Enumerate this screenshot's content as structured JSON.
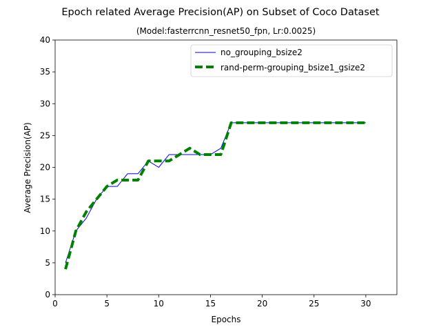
{
  "chart_data": {
    "type": "line",
    "title": "Epoch related Average Precision(AP) on Subset of Coco Dataset",
    "subtitle": "(Model:fasterrcnn_resnet50_fpn, Lr:0.0025)",
    "xlabel": "Epochs",
    "ylabel": "Average Precision(AP)",
    "xlim": [
      0,
      33
    ],
    "ylim": [
      0,
      40
    ],
    "xticks": [
      0,
      5,
      10,
      15,
      20,
      25,
      30
    ],
    "yticks": [
      0,
      5,
      10,
      15,
      20,
      25,
      30,
      35,
      40
    ],
    "grid": false,
    "legend_position": "upper-right",
    "series": [
      {
        "name": "no_grouping_bsize2",
        "color": "#0000ff",
        "style": "solid",
        "x": [
          1,
          2,
          3,
          4,
          5,
          6,
          7,
          8,
          9,
          10,
          11,
          12,
          13,
          14,
          15,
          16,
          17,
          18,
          19,
          20,
          21,
          22,
          23,
          24,
          25,
          26,
          27,
          28,
          29,
          30
        ],
        "y": [
          5,
          10,
          12,
          15,
          17,
          17,
          19,
          19,
          21,
          20,
          22,
          22,
          22,
          22,
          22,
          23,
          27,
          27,
          27,
          27,
          27,
          27,
          27,
          27,
          27,
          27,
          27,
          27,
          27,
          27
        ]
      },
      {
        "name": "rand-perm-grouping_bsize1_gsize2",
        "color": "#008000",
        "style": "dashed",
        "x": [
          1,
          2,
          3,
          4,
          5,
          6,
          7,
          8,
          9,
          10,
          11,
          12,
          13,
          14,
          15,
          16,
          17,
          18,
          19,
          20,
          21,
          22,
          23,
          24,
          25,
          26,
          27,
          28,
          29,
          30
        ],
        "y": [
          4,
          10,
          13,
          15,
          17,
          18,
          18,
          18,
          21,
          21,
          21,
          22,
          23,
          22,
          22,
          22,
          27,
          27,
          27,
          27,
          27,
          27,
          27,
          27,
          27,
          27,
          27,
          27,
          27,
          27
        ]
      }
    ]
  }
}
